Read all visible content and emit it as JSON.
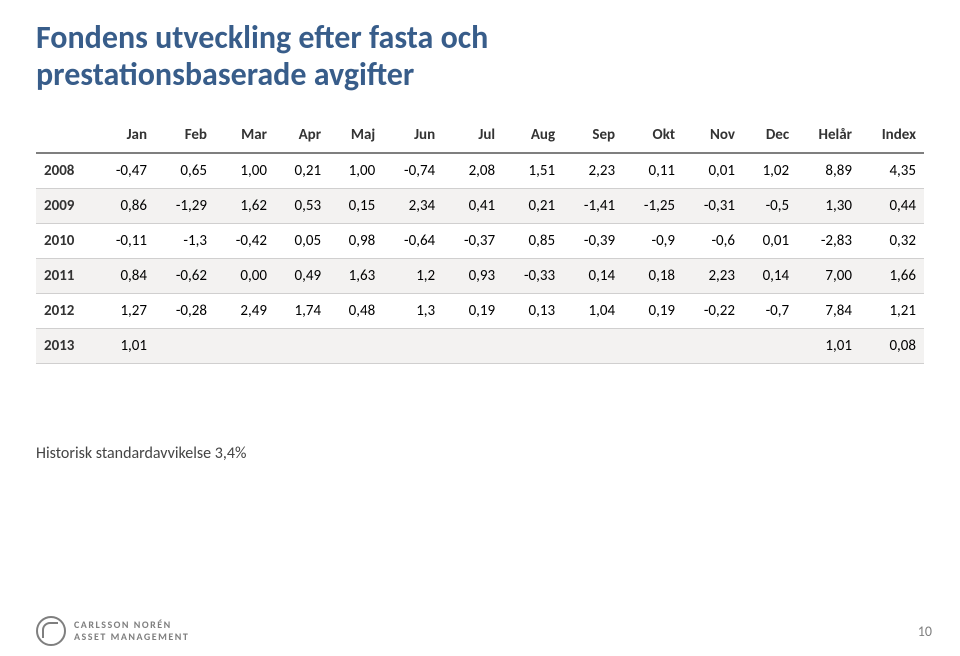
{
  "title_line1": "Fondens utveckling efter fasta och",
  "title_line2": "prestationsbaserade avgifter",
  "table": {
    "columns": [
      "",
      "Jan",
      "Feb",
      "Mar",
      "Apr",
      "Maj",
      "Jun",
      "Jul",
      "Aug",
      "Sep",
      "Okt",
      "Nov",
      "Dec",
      "Helår",
      "Index"
    ],
    "rows": [
      [
        "2008",
        "-0,47",
        "0,65",
        "1,00",
        "0,21",
        "1,00",
        "-0,74",
        "2,08",
        "1,51",
        "2,23",
        "0,11",
        "0,01",
        "1,02",
        "8,89",
        "4,35"
      ],
      [
        "2009",
        "0,86",
        "-1,29",
        "1,62",
        "0,53",
        "0,15",
        "2,34",
        "0,41",
        "0,21",
        "-1,41",
        "-1,25",
        "-0,31",
        "-0,5",
        "1,30",
        "0,44"
      ],
      [
        "2010",
        "-0,11",
        "-1,3",
        "-0,42",
        "0,05",
        "0,98",
        "-0,64",
        "-0,37",
        "0,85",
        "-0,39",
        "-0,9",
        "-0,6",
        "0,01",
        "-2,83",
        "0,32"
      ],
      [
        "2011",
        "0,84",
        "-0,62",
        "0,00",
        "0,49",
        "1,63",
        "1,2",
        "0,93",
        "-0,33",
        "0,14",
        "0,18",
        "2,23",
        "0,14",
        "7,00",
        "1,66"
      ],
      [
        "2012",
        "1,27",
        "-0,28",
        "2,49",
        "1,74",
        "0,48",
        "1,3",
        "0,19",
        "0,13",
        "1,04",
        "0,19",
        "-0,22",
        "-0,7",
        "7,84",
        "1,21"
      ],
      [
        "2013",
        "1,01",
        "",
        "",
        "",
        "",
        "",
        "",
        "",
        "",
        "",
        "",
        "",
        "1,01",
        "0,08"
      ]
    ],
    "header_fontsize": 15,
    "cell_fontsize": 15,
    "border_color": "#d0cfcf",
    "header_border_color": "#7f7f7f",
    "row_alt_bg": "#f3f2f1"
  },
  "footnote": "Historisk standardavvikelse 3,4%",
  "page_number": "10",
  "logo": {
    "line1": "CARLSSON NORÉN",
    "line2": "ASSET MANAGEMENT"
  },
  "colors": {
    "title": "#385d8a",
    "background": "#ffffff",
    "text": "#333333",
    "footer_text": "#7f7f7f"
  }
}
